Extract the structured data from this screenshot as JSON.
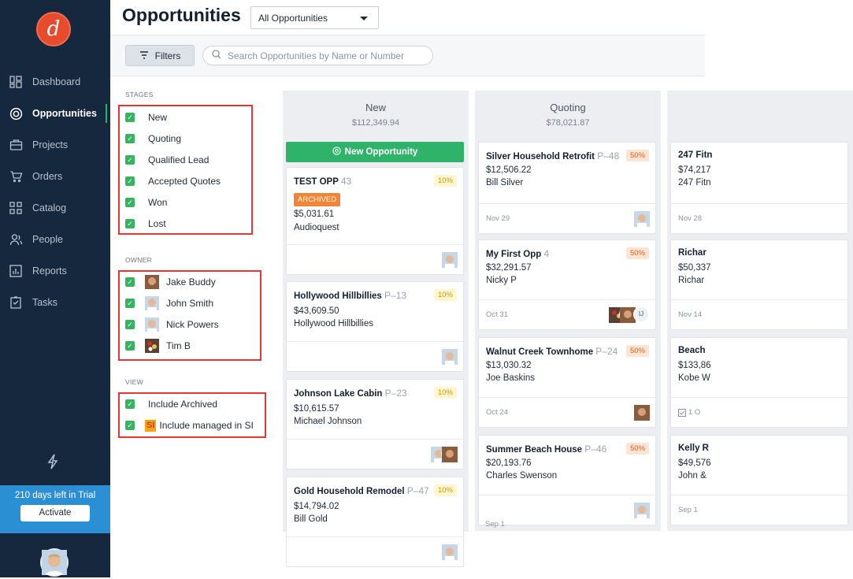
{
  "app": {
    "logo_letter": "d"
  },
  "sidebar": {
    "items": [
      {
        "label": "Dashboard",
        "icon": "dashboard-icon"
      },
      {
        "label": "Opportunities",
        "icon": "target-icon"
      },
      {
        "label": "Projects",
        "icon": "briefcase-icon"
      },
      {
        "label": "Orders",
        "icon": "cart-icon"
      },
      {
        "label": "Catalog",
        "icon": "catalog-icon"
      },
      {
        "label": "People",
        "icon": "people-icon"
      },
      {
        "label": "Reports",
        "icon": "reports-icon"
      },
      {
        "label": "Tasks",
        "icon": "tasks-icon"
      }
    ],
    "active": "Opportunities",
    "trial_text": "210 days left in Trial",
    "activate_label": "Activate"
  },
  "header": {
    "title": "Opportunities",
    "view_select": "All Opportunities"
  },
  "toolbar": {
    "filters_label": "Filters",
    "search_placeholder": "Search Opportunities by Name or Number"
  },
  "filters": {
    "stages_label": "STAGES",
    "stages": [
      "New",
      "Quoting",
      "Qualified Lead",
      "Accepted Quotes",
      "Won",
      "Lost"
    ],
    "owner_label": "OWNER",
    "owners": [
      "Jake Buddy",
      "John Smith",
      "Nick Powers",
      "Tim B"
    ],
    "view_label": "VIEW",
    "view_options": [
      "Include Archived",
      "Include managed in SI"
    ],
    "si_badge": "SI"
  },
  "board": {
    "columns": [
      {
        "name": "New",
        "total": "$112,349.94",
        "new_button": "New Opportunity",
        "cards": [
          {
            "title": "TEST OPP",
            "number": "43",
            "pct": "10%",
            "badge": "ARCHIVED",
            "amount": "$5,031.61",
            "sub": "Audioquest",
            "date": ""
          },
          {
            "title": "Hollywood Hillbillies",
            "number": "P–13",
            "pct": "10%",
            "amount": "$43,609.50",
            "sub": "Hollywood Hillbillies",
            "date": ""
          },
          {
            "title": "Johnson Lake Cabin",
            "number": "P–23",
            "pct": "10%",
            "amount": "$10,615.57",
            "sub": "Michael Johnson",
            "date": ""
          },
          {
            "title": "Gold Household Remodel",
            "number": "P–47",
            "pct": "10%",
            "amount": "$14,794.02",
            "sub": "Bill Gold",
            "date": ""
          }
        ]
      },
      {
        "name": "Quoting",
        "total": "$78,021.87",
        "cards": [
          {
            "title": "Silver Household Retrofit",
            "number": "P–48",
            "pct": "50%",
            "amount": "$12,506.22",
            "sub": "Bill Silver",
            "date": "Nov 29"
          },
          {
            "title": "My First Opp",
            "number": "4",
            "pct": "50%",
            "amount": "$32,291.57",
            "sub": "Nicky P",
            "date": "Oct 31",
            "initials": "IJ"
          },
          {
            "title": "Walnut Creek Townhome",
            "number": "P–24",
            "pct": "50%",
            "amount": "$13,030.32",
            "sub": "Joe Baskins",
            "date": "Oct 24"
          },
          {
            "title": "Summer Beach House",
            "number": "P–46",
            "pct": "50%",
            "amount": "$20,193.76",
            "sub": "Charles Swenson",
            "date": "Sep 1"
          }
        ]
      },
      {
        "name": "",
        "cards": [
          {
            "title": "247 Fitn",
            "amount": "$74,217",
            "sub": "247 Fitn",
            "date": "Nov 28"
          },
          {
            "title": "Richar",
            "amount": "$50,337",
            "sub": "Richar",
            "date": "Nov 14"
          },
          {
            "title": "Beach",
            "amount": "$133,86",
            "sub": "Kobe W",
            "date": "1  O",
            "task_icon": "check-square-icon"
          },
          {
            "title": "Kelly R",
            "amount": "$49,576",
            "sub": "John &",
            "date": "Sep 1"
          }
        ]
      }
    ]
  }
}
